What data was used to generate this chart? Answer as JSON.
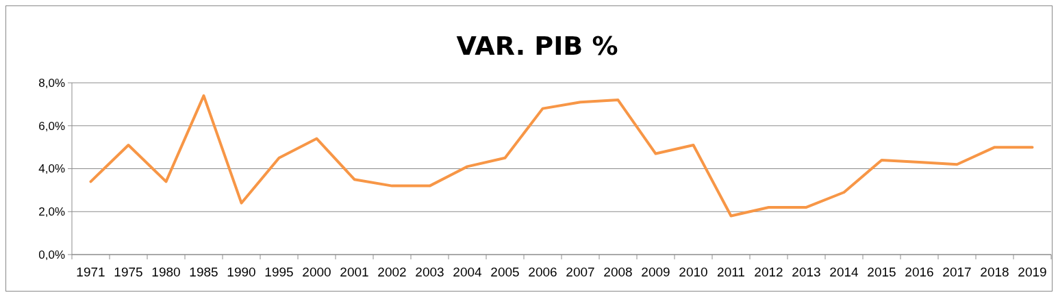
{
  "chart_data": {
    "type": "line",
    "title": "VAR. PIB %",
    "categories": [
      "1971",
      "1975",
      "1980",
      "1985",
      "1990",
      "1995",
      "2000",
      "2001",
      "2002",
      "2003",
      "2004",
      "2005",
      "2006",
      "2007",
      "2008",
      "2009",
      "2010",
      "2011",
      "2012",
      "2013",
      "2014",
      "2015",
      "2016",
      "2017",
      "2018",
      "2019"
    ],
    "series": [
      {
        "color": "#f79646",
        "values": [
          3.4,
          5.1,
          3.4,
          7.4,
          2.4,
          4.5,
          5.4,
          3.5,
          3.2,
          3.2,
          4.1,
          4.5,
          6.8,
          7.1,
          7.2,
          4.7,
          5.1,
          1.8,
          2.2,
          2.2,
          2.9,
          4.4,
          4.3,
          4.2,
          5.0,
          5.0
        ]
      }
    ],
    "ylim": [
      0,
      8
    ],
    "yticks": [
      {
        "value": 0,
        "label": "0,0%"
      },
      {
        "value": 2,
        "label": "2,0%"
      },
      {
        "value": 4,
        "label": "4,0%"
      },
      {
        "value": 6,
        "label": "6,0%"
      },
      {
        "value": 8,
        "label": "8,0%"
      }
    ],
    "grid": "y",
    "marker": "none",
    "line_style": "solid"
  }
}
